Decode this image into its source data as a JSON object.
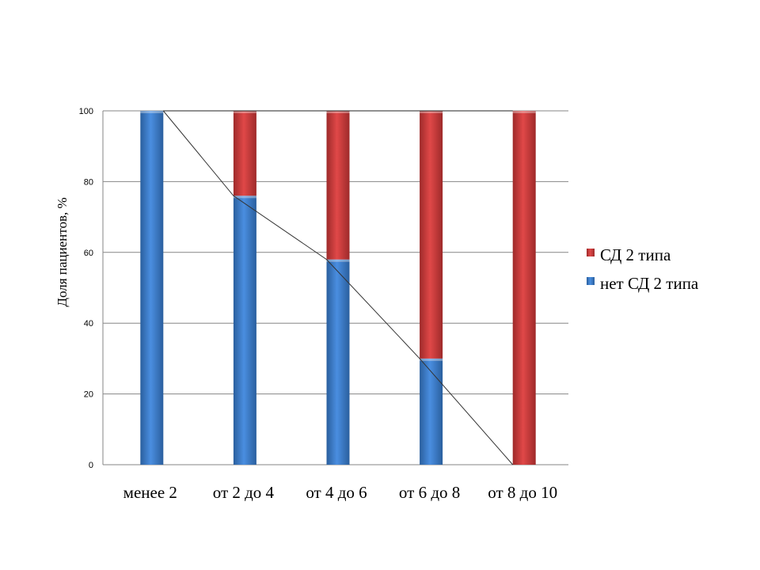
{
  "chart_data": {
    "type": "bar",
    "stacked": true,
    "title": "",
    "xlabel": "",
    "ylabel": "Доля пациентов, %",
    "ylim": [
      0,
      100
    ],
    "yticks": [
      0,
      20,
      40,
      60,
      80,
      100
    ],
    "grid": true,
    "legend_position": "right",
    "categories": [
      "менее 2",
      "от 2 до 4",
      "от 4 до 6",
      "от 6 до 8",
      "от 8 до 10"
    ],
    "series": [
      {
        "name": "нет СД 2 типа",
        "color": "#3d7fd1",
        "values": [
          100,
          76,
          58,
          30,
          0
        ]
      },
      {
        "name": "СД 2 типа",
        "color": "#d63c3c",
        "values": [
          0,
          24,
          42,
          70,
          100
        ]
      }
    ],
    "legend_order": [
      "СД 2 типа",
      "нет СД 2 типа"
    ],
    "trend_line": true
  }
}
